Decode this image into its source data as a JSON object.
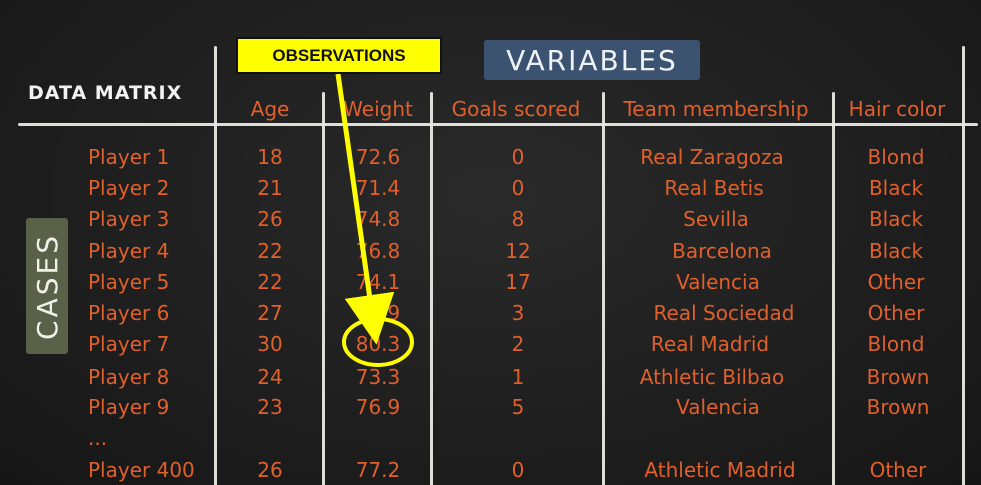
{
  "title": "DATA MATRIX",
  "variables_label": "VARIABLES",
  "cases_label": "CASES",
  "observations_label": "OBSERVATIONS",
  "columns": [
    "Age",
    "Weight",
    "Goals scored",
    "Team membership",
    "Hair color"
  ],
  "rows": [
    {
      "case": "Player 1",
      "values": [
        "18",
        "72.6",
        "0",
        "Real Zaragoza",
        "Blond"
      ]
    },
    {
      "case": "Player 2",
      "values": [
        "21",
        "71.4",
        "0",
        "Real Betis",
        "Black"
      ]
    },
    {
      "case": "Player 3",
      "values": [
        "26",
        "74.8",
        "8",
        "Sevilla",
        "Black"
      ]
    },
    {
      "case": "Player 4",
      "values": [
        "22",
        "76.8",
        "12",
        "Barcelona",
        "Black"
      ]
    },
    {
      "case": "Player 5",
      "values": [
        "22",
        "74.1",
        "17",
        "Valencia",
        "Other"
      ]
    },
    {
      "case": "Player 6",
      "values": [
        "27",
        "78.9",
        "3",
        "Real Sociedad",
        "Other"
      ]
    },
    {
      "case": "Player 7",
      "values": [
        "30",
        "80.3",
        "2",
        "Real Madrid",
        "Blond"
      ]
    },
    {
      "case": "Player 8",
      "values": [
        "24",
        "73.3",
        "1",
        "Athletic Bilbao",
        "Brown"
      ]
    },
    {
      "case": "Player 9",
      "values": [
        "23",
        "76.9",
        "5",
        "Valencia",
        "Brown"
      ]
    },
    {
      "case": "...",
      "values": [
        "",
        "",
        "",
        "",
        ""
      ]
    },
    {
      "case": "Player 400",
      "values": [
        "26",
        "77.2",
        "0",
        "Athletic Madrid",
        "Other"
      ]
    }
  ],
  "colors": {
    "chalk_text": "#e0602c",
    "chalk_line": "#e9e9e4",
    "variables_bg": "#3b5370",
    "cases_bg": "#5b6148",
    "highlight": "#ffff00"
  }
}
